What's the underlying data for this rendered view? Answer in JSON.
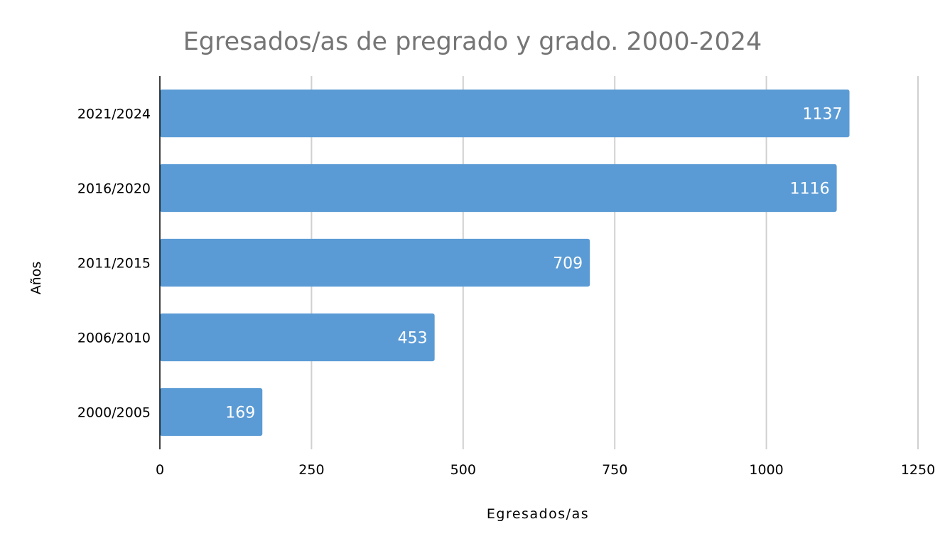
{
  "chart_data": {
    "type": "bar",
    "orientation": "horizontal",
    "title": "Egresados/as de pregrado y grado. 2000-2024",
    "xlabel": "Egresados/as",
    "ylabel": "Años",
    "categories": [
      "2021/2024",
      "2016/2020",
      "2011/2015",
      "2006/2010",
      "2000/2005"
    ],
    "series": [
      {
        "values": [
          1137,
          1116,
          709,
          453,
          169
        ]
      }
    ],
    "xlim": [
      0,
      1250
    ],
    "xticks": [
      "0",
      "250",
      "500",
      "750",
      "1000",
      "1250"
    ],
    "grid": "vertical",
    "legend": "none",
    "data_labels": true,
    "colors": {
      "bar": "#5b9bd5",
      "grid": "#d0d0d0",
      "axis": "#000000",
      "title": "#757575",
      "label": "#ffffff"
    }
  }
}
